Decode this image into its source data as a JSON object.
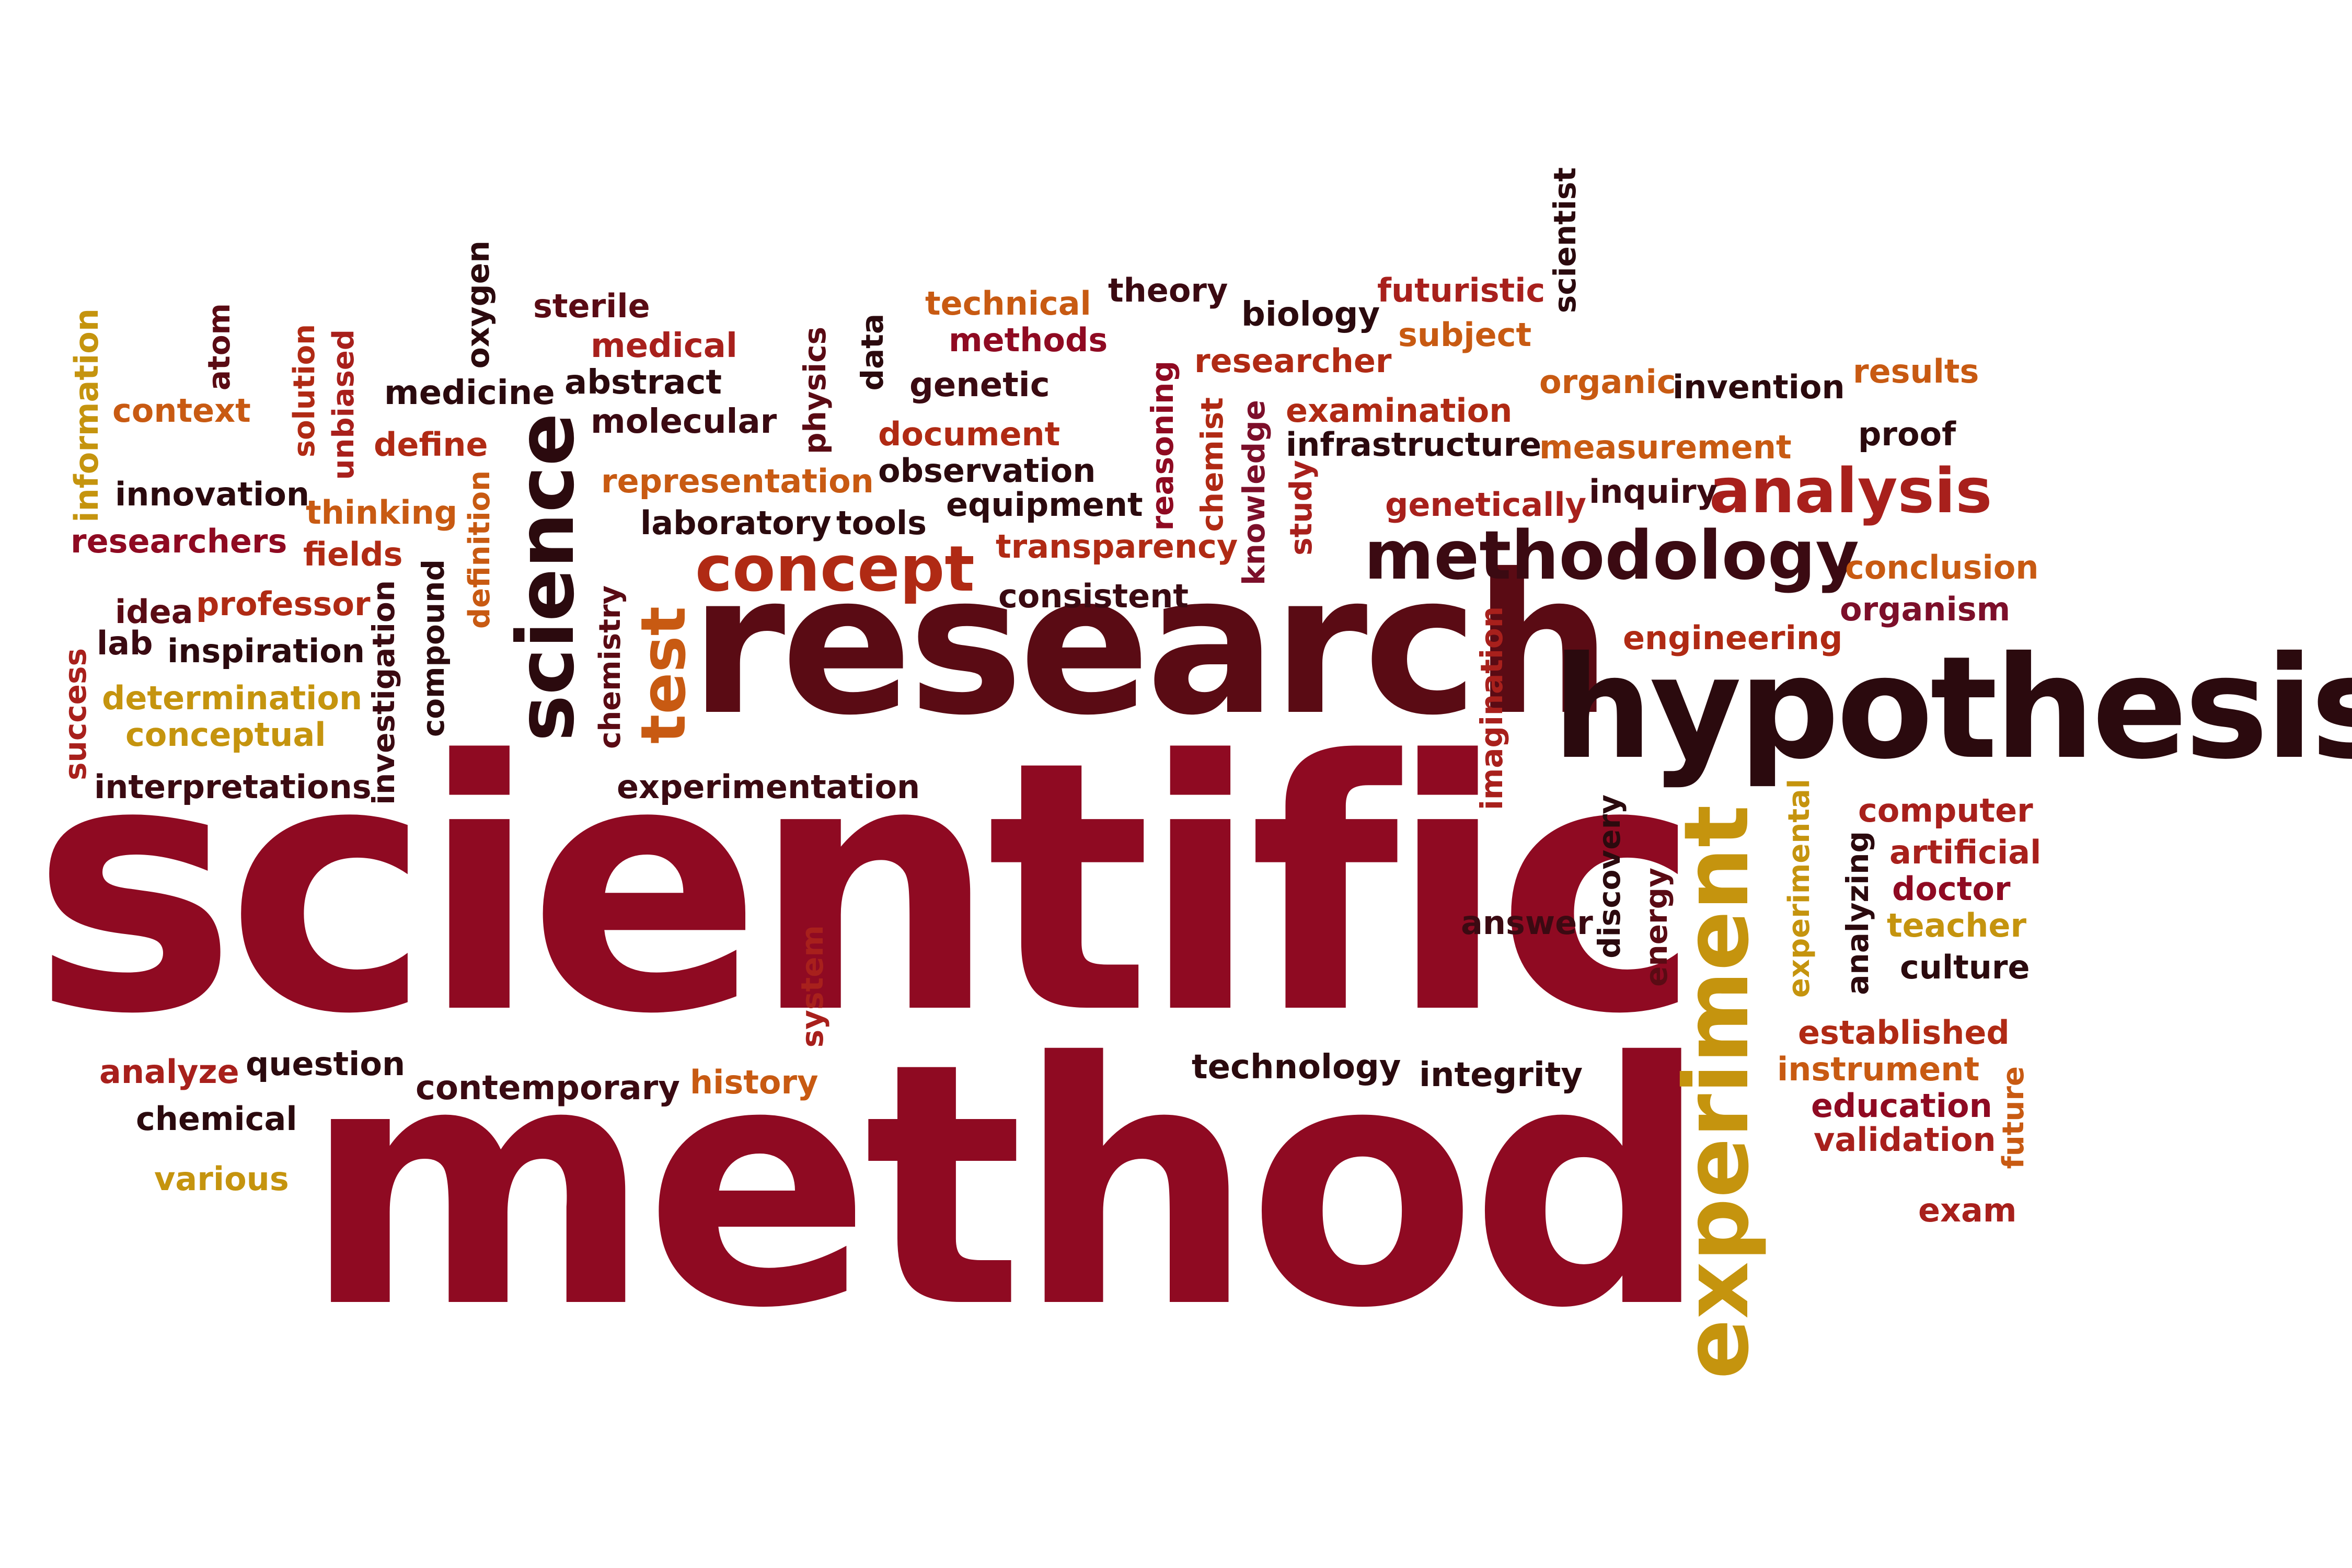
{
  "palette": {
    "crimson": "#8f0a22",
    "maroon": "#5a0b14",
    "darkbrown": "#2b0a0e",
    "burgundy": "#7c0f2a",
    "rust": "#b02a14",
    "orange": "#c85a12",
    "gold": "#c5940e",
    "red": "#a8201c"
  },
  "words": [
    {
      "text": "scientific",
      "color": "#8f0a22"
    },
    {
      "text": "method",
      "color": "#8f0a22"
    },
    {
      "text": "research",
      "color": "#5a0b14"
    },
    {
      "text": "hypothesis",
      "color": "#2b0a0e"
    },
    {
      "text": "experiment",
      "color": "#c5940e"
    },
    {
      "text": "science",
      "color": "#2b0a0e"
    },
    {
      "text": "methodology",
      "color": "#3b0a12"
    },
    {
      "text": "analysis",
      "color": "#a8201c"
    },
    {
      "text": "concept",
      "color": "#b02a14"
    },
    {
      "text": "test",
      "color": "#c85a12"
    },
    {
      "text": "information",
      "color": "#c5940e"
    },
    {
      "text": "atom",
      "color": "#5a0b14"
    },
    {
      "text": "context",
      "color": "#c85a12"
    },
    {
      "text": "solution",
      "color": "#b02a14"
    },
    {
      "text": "unbiased",
      "color": "#a8201c"
    },
    {
      "text": "oxygen",
      "color": "#2b0a0e"
    },
    {
      "text": "sterile",
      "color": "#5a0b14"
    },
    {
      "text": "medical",
      "color": "#a8201c"
    },
    {
      "text": "medicine",
      "color": "#2b0a0e"
    },
    {
      "text": "abstract",
      "color": "#2b0a0e"
    },
    {
      "text": "molecular",
      "color": "#3b0a12"
    },
    {
      "text": "define",
      "color": "#b02a14"
    },
    {
      "text": "innovation",
      "color": "#2b0a0e"
    },
    {
      "text": "thinking",
      "color": "#c85a12"
    },
    {
      "text": "researchers",
      "color": "#8f0a22"
    },
    {
      "text": "fields",
      "color": "#b02a14"
    },
    {
      "text": "definition",
      "color": "#c85a12"
    },
    {
      "text": "idea",
      "color": "#5a0b14"
    },
    {
      "text": "professor",
      "color": "#b02a14"
    },
    {
      "text": "lab",
      "color": "#3b0a12"
    },
    {
      "text": "inspiration",
      "color": "#2b0a0e"
    },
    {
      "text": "success",
      "color": "#a8201c"
    },
    {
      "text": "determination",
      "color": "#c5940e"
    },
    {
      "text": "conceptual",
      "color": "#c5940e"
    },
    {
      "text": "interpretations",
      "color": "#3b0a12"
    },
    {
      "text": "investigation",
      "color": "#3b0a12"
    },
    {
      "text": "compound",
      "color": "#2b0a0e"
    },
    {
      "text": "chemistry",
      "color": "#5a0b14"
    },
    {
      "text": "physics",
      "color": "#5a0b14"
    },
    {
      "text": "data",
      "color": "#2b0a0e"
    },
    {
      "text": "technical",
      "color": "#c85a12"
    },
    {
      "text": "methods",
      "color": "#8f0a22"
    },
    {
      "text": "theory",
      "color": "#3b0a12"
    },
    {
      "text": "biology",
      "color": "#2b0a0e"
    },
    {
      "text": "futuristic",
      "color": "#a8201c"
    },
    {
      "text": "subject",
      "color": "#c85a12"
    },
    {
      "text": "scientist",
      "color": "#2b0a0e"
    },
    {
      "text": "genetic",
      "color": "#3b0a12"
    },
    {
      "text": "researcher",
      "color": "#b02a14"
    },
    {
      "text": "document",
      "color": "#b02a14"
    },
    {
      "text": "observation",
      "color": "#2b0a0e"
    },
    {
      "text": "reasoning",
      "color": "#8f0a22"
    },
    {
      "text": "chemist",
      "color": "#b02a14"
    },
    {
      "text": "knowledge",
      "color": "#7c0f2a"
    },
    {
      "text": "study",
      "color": "#a8201c"
    },
    {
      "text": "examination",
      "color": "#b02a14"
    },
    {
      "text": "infrastructure",
      "color": "#2b0a0e"
    },
    {
      "text": "organic",
      "color": "#c85a12"
    },
    {
      "text": "invention",
      "color": "#2b0a0e"
    },
    {
      "text": "results",
      "color": "#c85a12"
    },
    {
      "text": "measurement",
      "color": "#c85a12"
    },
    {
      "text": "proof",
      "color": "#2b0a0e"
    },
    {
      "text": "representation",
      "color": "#c85a12"
    },
    {
      "text": "equipment",
      "color": "#2b0a0e"
    },
    {
      "text": "laboratory",
      "color": "#2b0a0e"
    },
    {
      "text": "tools",
      "color": "#2b0a0e"
    },
    {
      "text": "transparency",
      "color": "#b02a14"
    },
    {
      "text": "consistent",
      "color": "#3b0a12"
    },
    {
      "text": "genetically",
      "color": "#a8201c"
    },
    {
      "text": "inquiry",
      "color": "#3b0a12"
    },
    {
      "text": "conclusion",
      "color": "#c85a12"
    },
    {
      "text": "organism",
      "color": "#7c0f2a"
    },
    {
      "text": "engineering",
      "color": "#b02a14"
    },
    {
      "text": "imagination",
      "color": "#a8201c"
    },
    {
      "text": "experimentation",
      "color": "#3b0a12"
    },
    {
      "text": "discovery",
      "color": "#2b0a0e"
    },
    {
      "text": "energy",
      "color": "#5a0b14"
    },
    {
      "text": "experimental",
      "color": "#c5940e"
    },
    {
      "text": "analyzing",
      "color": "#2b0a0e"
    },
    {
      "text": "computer",
      "color": "#a8201c"
    },
    {
      "text": "artificial",
      "color": "#a8201c"
    },
    {
      "text": "doctor",
      "color": "#8f0a22"
    },
    {
      "text": "teacher",
      "color": "#c5940e"
    },
    {
      "text": "culture",
      "color": "#2b0a0e"
    },
    {
      "text": "answer",
      "color": "#3b0a12"
    },
    {
      "text": "system",
      "color": "#a8201c"
    },
    {
      "text": "established",
      "color": "#b02a14"
    },
    {
      "text": "instrument",
      "color": "#c85a12"
    },
    {
      "text": "education",
      "color": "#8f0a22"
    },
    {
      "text": "validation",
      "color": "#a8201c"
    },
    {
      "text": "future",
      "color": "#c85a12"
    },
    {
      "text": "exam",
      "color": "#a8201c"
    },
    {
      "text": "analyze",
      "color": "#a8201c"
    },
    {
      "text": "question",
      "color": "#2b0a0e"
    },
    {
      "text": "contemporary",
      "color": "#3b0a12"
    },
    {
      "text": "history",
      "color": "#c85a12"
    },
    {
      "text": "technology",
      "color": "#2b0a0e"
    },
    {
      "text": "integrity",
      "color": "#2b0a0e"
    },
    {
      "text": "chemical",
      "color": "#2b0a0e"
    },
    {
      "text": "various",
      "color": "#c5940e"
    }
  ]
}
